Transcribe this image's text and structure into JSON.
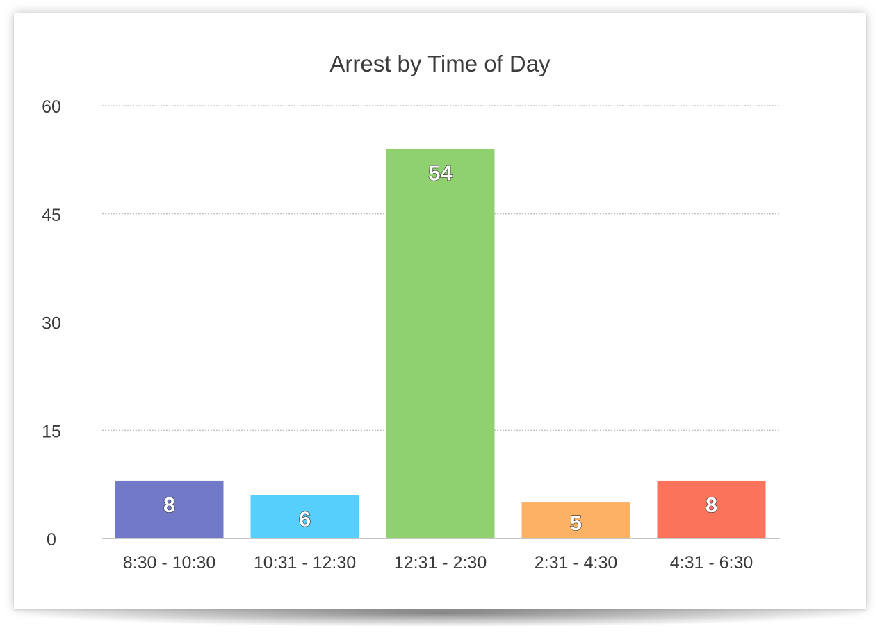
{
  "chart_data": {
    "type": "bar",
    "title": "Arrest by Time of Day",
    "xlabel": "",
    "ylabel": "",
    "categories": [
      "8:30 - 10:30",
      "10:31 - 12:30",
      "12:31 - 2:30",
      "2:31 - 4:30",
      "4:31 - 6:30"
    ],
    "values": [
      8,
      6,
      54,
      5,
      8
    ],
    "colors": [
      "#7279c8",
      "#57cffb",
      "#8fd06f",
      "#fcb164",
      "#fa735a"
    ],
    "ylim": [
      0,
      60
    ],
    "yticks": [
      0,
      15,
      30,
      45,
      60
    ],
    "grid": true,
    "legend": "none",
    "data_labels": true
  }
}
